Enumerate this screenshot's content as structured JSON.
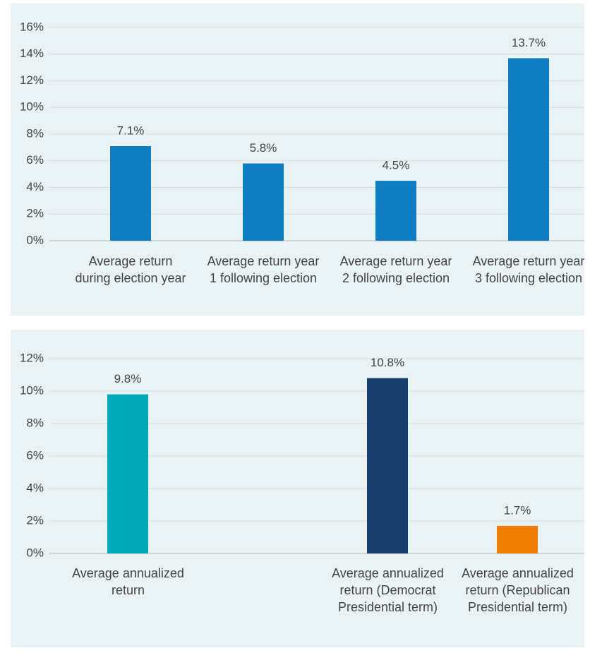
{
  "chart_data": [
    {
      "type": "bar",
      "color": "#0f7dc2",
      "grid": true,
      "categories": [
        "Average return during election year",
        "Average return year 1 following election",
        "Average return year 2 following election",
        "Average return year 3 following election"
      ],
      "values": [
        7.1,
        5.8,
        4.5,
        13.7
      ],
      "value_labels": [
        "7.1%",
        "5.8%",
        "4.5%",
        "13.7%"
      ],
      "ylim": [
        0,
        16
      ],
      "yticks": [
        {
          "value": 0,
          "label": "0%"
        },
        {
          "value": 2,
          "label": "2%"
        },
        {
          "value": 4,
          "label": "4%"
        },
        {
          "value": 6,
          "label": "6%"
        },
        {
          "value": 8,
          "label": "8%"
        },
        {
          "value": 10,
          "label": "10%"
        },
        {
          "value": 12,
          "label": "12%"
        },
        {
          "value": 14,
          "label": "14%"
        },
        {
          "value": 16,
          "label": "16%"
        }
      ]
    },
    {
      "type": "bar",
      "colors": [
        "#00a9b7",
        null,
        "#173f6e",
        "#f07c00"
      ],
      "grid": true,
      "categories": [
        "Average annualized return",
        null,
        "Average annualized return (Democrat Presidential term)",
        "Average annualized return (Republican Presidential term)"
      ],
      "values": [
        9.8,
        null,
        10.8,
        1.7
      ],
      "value_labels": [
        "9.8%",
        null,
        "10.8%",
        "1.7%"
      ],
      "ylim": [
        0,
        12
      ],
      "yticks": [
        {
          "value": 0,
          "label": "0%"
        },
        {
          "value": 2,
          "label": "2%"
        },
        {
          "value": 4,
          "label": "4%"
        },
        {
          "value": 6,
          "label": "6%"
        },
        {
          "value": 8,
          "label": "8%"
        },
        {
          "value": 10,
          "label": "10%"
        },
        {
          "value": 12,
          "label": "12%"
        }
      ]
    }
  ]
}
